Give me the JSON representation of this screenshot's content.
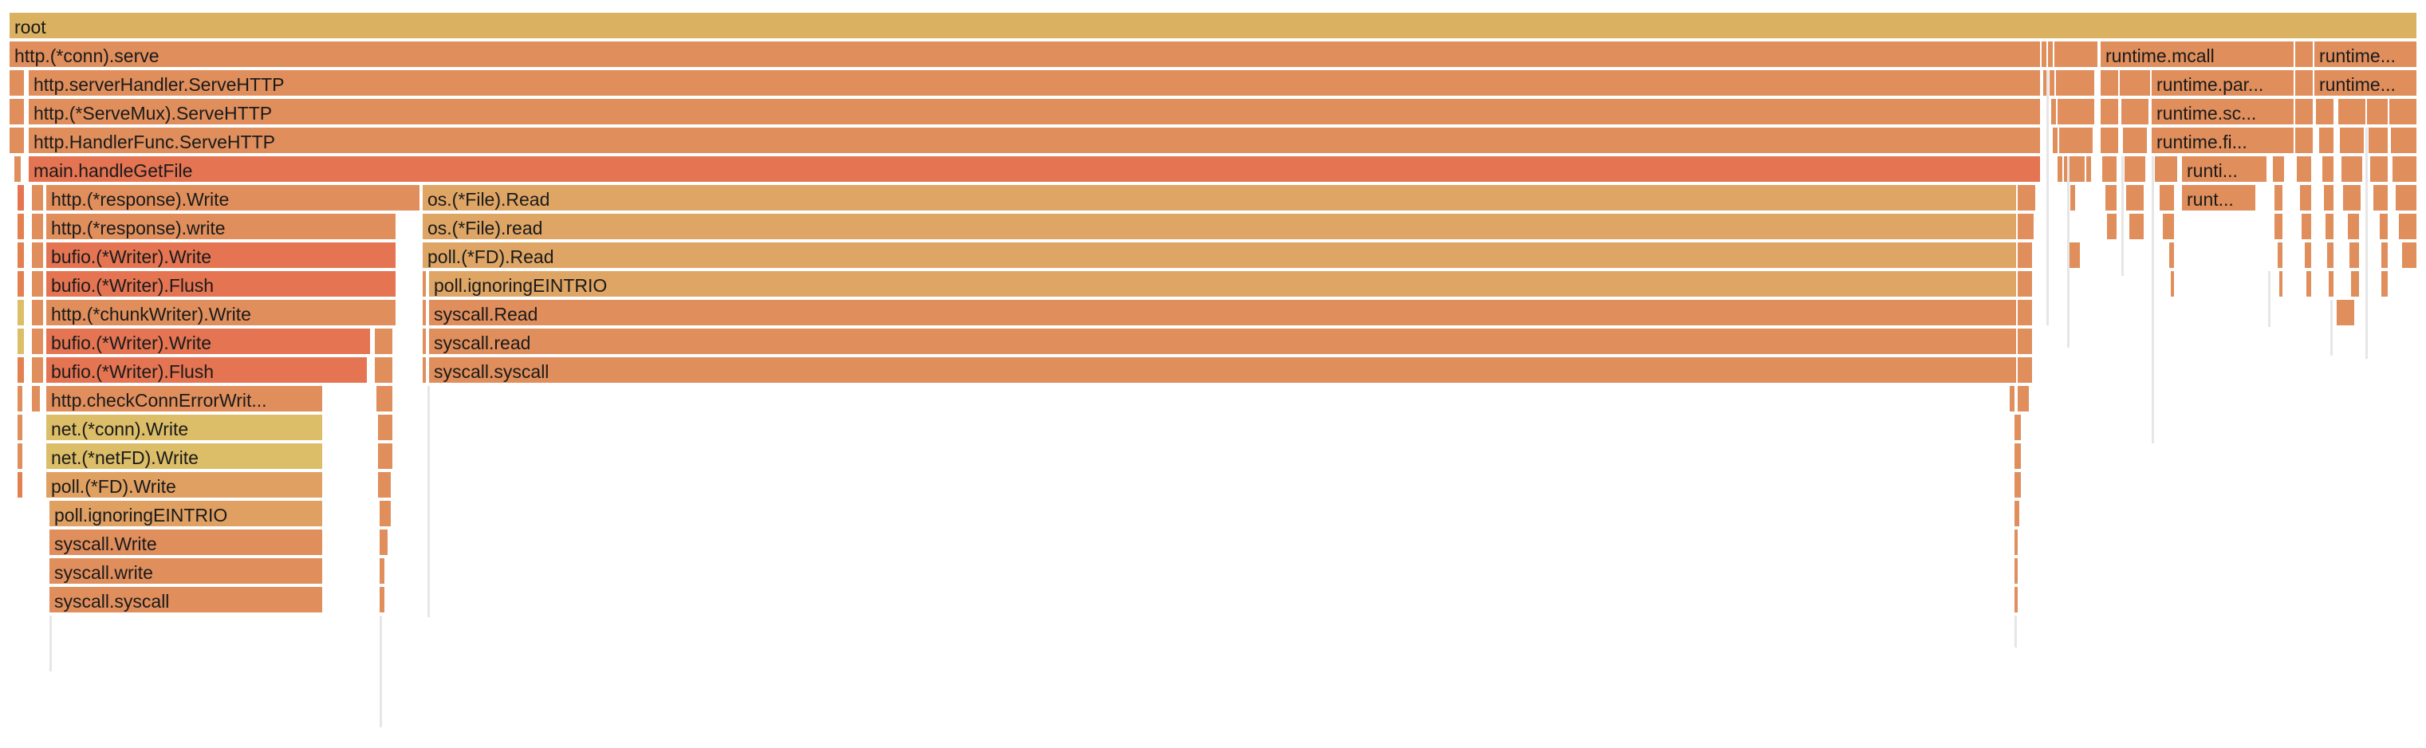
{
  "colors": {
    "root": "#dab061",
    "serve": "#e08e5c",
    "light": "#dea565",
    "red": "#e47452",
    "redmid": "#e3804f",
    "yellow": "#dcbd68",
    "tan": "#dfa062"
  },
  "frames": {
    "root": "root",
    "conn_serve": "http.(*conn).serve",
    "runtime_mcall": "runtime.mcall",
    "runtime_trunc": "runtime...",
    "server_handler": "http.serverHandler.ServeHTTP",
    "runtime_park": "runtime.par...",
    "servemux": "http.(*ServeMux).ServeHTTP",
    "runtime_sc": "runtime.sc...",
    "handlerfunc": "http.HandlerFunc.ServeHTTP",
    "runtime_fi": "runtime.fi...",
    "handle_get_file": "main.handleGetFile",
    "runti": "runti...",
    "response_Write": "http.(*response).Write",
    "os_file_Read": "os.(*File).Read",
    "runt": "runt...",
    "response_write": "http.(*response).write",
    "os_file_read": "os.(*File).read",
    "bufio_write_1": "bufio.(*Writer).Write",
    "poll_fd_read": "poll.(*FD).Read",
    "bufio_flush_1": "bufio.(*Writer).Flush",
    "poll_ignoring_read": "poll.ignoringEINTRIO",
    "chunkwriter": "http.(*chunkWriter).Write",
    "syscall_Read": "syscall.Read",
    "bufio_write_2": "bufio.(*Writer).Write",
    "syscall_read": "syscall.read",
    "bufio_flush_2": "bufio.(*Writer).Flush",
    "syscall_syscall_read": "syscall.syscall",
    "check_conn": "http.checkConnErrorWrit...",
    "net_conn_write": "net.(*conn).Write",
    "net_netfd_write": "net.(*netFD).Write",
    "poll_fd_write": "poll.(*FD).Write",
    "poll_ignoring_write": "poll.ignoringEINTRIO",
    "syscall_Write": "syscall.Write",
    "syscall_write": "syscall.write",
    "syscall_syscall_write": "syscall.syscall"
  }
}
